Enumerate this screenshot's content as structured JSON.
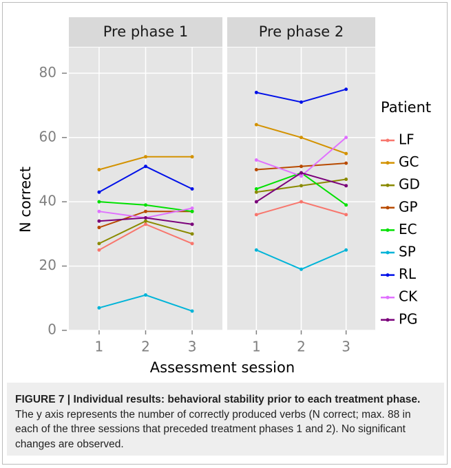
{
  "chart_data": {
    "type": "line",
    "ylabel": "N correct",
    "xlabel": "Assessment session",
    "legend_title": "Patient",
    "x": [
      1,
      2,
      3
    ],
    "xlim": [
      0.35,
      3.65
    ],
    "xticks": [
      1,
      2,
      3
    ],
    "ylim": [
      0,
      88
    ],
    "yticks": [
      0,
      20,
      40,
      60,
      80
    ],
    "grid": true,
    "series": [
      {
        "name": "LF",
        "color": "#f8766d"
      },
      {
        "name": "GC",
        "color": "#d39200"
      },
      {
        "name": "GD",
        "color": "#8a8a00"
      },
      {
        "name": "GP",
        "color": "#b84a00"
      },
      {
        "name": "EC",
        "color": "#00e000"
      },
      {
        "name": "SP",
        "color": "#00b4d8"
      },
      {
        "name": "RL",
        "color": "#0010e8"
      },
      {
        "name": "CK",
        "color": "#e070ff"
      },
      {
        "name": "PG",
        "color": "#7a007a"
      }
    ],
    "panels": [
      {
        "title": "Pre phase 1",
        "values": [
          [
            25,
            33,
            27
          ],
          [
            50,
            54,
            54
          ],
          [
            27,
            34,
            30
          ],
          [
            32,
            37,
            37
          ],
          [
            40,
            39,
            37
          ],
          [
            7,
            11,
            6
          ],
          [
            43,
            51,
            44
          ],
          [
            37,
            35,
            38
          ],
          [
            34,
            35,
            33
          ]
        ]
      },
      {
        "title": "Pre phase 2",
        "values": [
          [
            36,
            40,
            36
          ],
          [
            64,
            60,
            55
          ],
          [
            43,
            45,
            47
          ],
          [
            50,
            51,
            52
          ],
          [
            44,
            49,
            39
          ],
          [
            25,
            19,
            25
          ],
          [
            74,
            71,
            75
          ],
          [
            53,
            48,
            60
          ],
          [
            40,
            49,
            45
          ]
        ]
      }
    ]
  },
  "caption": {
    "label": "FIGURE 7 |",
    "title": "Individual results: behavioral stability prior to each treatment phase.",
    "text": "The y axis represents the number of correctly produced verbs (N correct; max. 88 in each of the three sessions that preceded treatment phases 1 and 2). No significant changes are observed."
  }
}
